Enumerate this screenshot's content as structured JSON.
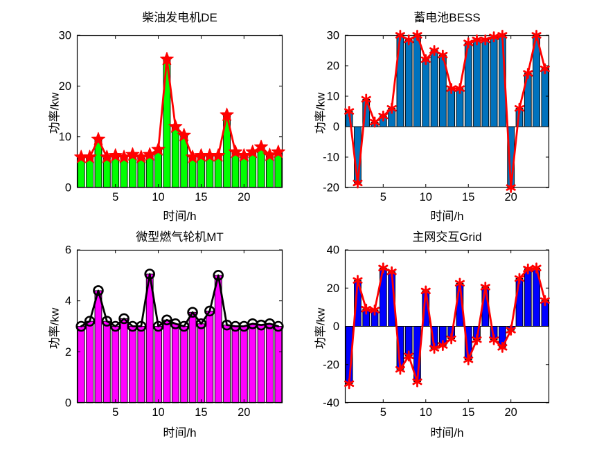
{
  "figure": {
    "background": "#ffffff",
    "layout": "2x2 grid of MATLAB-style bar+line charts",
    "frame_color": "#000000",
    "text_color": "#000000"
  },
  "chart_data": [
    {
      "type": "bar",
      "title": "柴油发电机DE",
      "xlabel": "时间/h",
      "ylabel": "功率/kw",
      "hours": [
        1,
        2,
        3,
        4,
        5,
        6,
        7,
        8,
        9,
        10,
        11,
        12,
        13,
        14,
        15,
        16,
        17,
        18,
        19,
        20,
        21,
        22,
        23,
        24
      ],
      "values": [
        6,
        6,
        9.5,
        6,
        6.3,
        6,
        6.5,
        6,
        6.5,
        7.5,
        25.3,
        12,
        10.3,
        6,
        6.3,
        6.3,
        6.3,
        14.3,
        7,
        6.3,
        7,
        8,
        6.4,
        7
      ],
      "xlim": [
        0.5,
        24.5
      ],
      "ylim": [
        0,
        30
      ],
      "yticks": [
        0,
        10,
        20,
        30
      ],
      "xticks": [
        5,
        10,
        15,
        20
      ],
      "grid": false,
      "legend": null,
      "bar_color": "#00ff00",
      "bar_edge_color": "#000000",
      "line_color": "#ff0000",
      "marker": "pentagram",
      "marker_color": "#ff0000"
    },
    {
      "type": "bar",
      "title": "蓄电池BESS",
      "xlabel": "时间/h",
      "ylabel": "功率/kw",
      "hours": [
        1,
        2,
        3,
        4,
        5,
        6,
        7,
        8,
        9,
        10,
        11,
        12,
        13,
        14,
        15,
        16,
        17,
        18,
        19,
        20,
        21,
        22,
        23,
        24
      ],
      "values": [
        5,
        -18.5,
        9,
        1.5,
        3.5,
        6,
        30,
        28.5,
        30,
        22,
        25,
        23.5,
        12.5,
        12.5,
        27.5,
        28.5,
        28.5,
        29.5,
        30,
        -20,
        6,
        17.5,
        30,
        19
      ],
      "xlim": [
        0.5,
        24.5
      ],
      "ylim": [
        -20,
        30
      ],
      "yticks": [
        -20,
        -10,
        0,
        10,
        20,
        30
      ],
      "xticks": [
        5,
        10,
        15,
        20
      ],
      "grid": false,
      "legend": null,
      "bar_color": "#0072bd",
      "bar_edge_color": "#000000",
      "line_color": "#ff0000",
      "marker": "asterisk",
      "marker_color": "#ff0000"
    },
    {
      "type": "bar",
      "title": "微型燃气轮机MT",
      "xlabel": "时间/h",
      "ylabel": "功率/kw",
      "hours": [
        1,
        2,
        3,
        4,
        5,
        6,
        7,
        8,
        9,
        10,
        11,
        12,
        13,
        14,
        15,
        16,
        17,
        18,
        19,
        20,
        21,
        22,
        23,
        24
      ],
      "values": [
        3,
        3.2,
        4.4,
        3.2,
        3,
        3.3,
        3,
        3,
        5.05,
        3,
        3.25,
        3.1,
        3,
        3.55,
        3.1,
        3.6,
        5,
        3.05,
        3,
        3,
        3.1,
        3.05,
        3.1,
        3
      ],
      "xlim": [
        0.5,
        24.5
      ],
      "ylim": [
        0,
        6
      ],
      "yticks": [
        0,
        2,
        4,
        6
      ],
      "xticks": [
        5,
        10,
        15,
        20
      ],
      "grid": false,
      "legend": null,
      "bar_color": "#ff00ff",
      "bar_edge_color": "#000000",
      "line_color": "#000000",
      "marker": "circle-open",
      "marker_color": "#000000"
    },
    {
      "type": "bar",
      "title": "主网交互Grid",
      "xlabel": "时间/h",
      "ylabel": "功率/kw",
      "hours": [
        1,
        2,
        3,
        4,
        5,
        6,
        7,
        8,
        9,
        10,
        11,
        12,
        13,
        14,
        15,
        16,
        17,
        18,
        19,
        20,
        21,
        22,
        23,
        24
      ],
      "values": [
        -30,
        24,
        9,
        8.5,
        30.5,
        28.5,
        -22.5,
        -15.5,
        -29,
        18.5,
        -11.5,
        -10,
        -6.5,
        22.5,
        -17.5,
        -7,
        20.5,
        -7,
        -11,
        -2,
        25,
        30,
        30.5,
        13.5
      ],
      "xlim": [
        0.5,
        24.5
      ],
      "ylim": [
        -40,
        40
      ],
      "yticks": [
        -40,
        -20,
        0,
        20,
        40
      ],
      "xticks": [
        5,
        10,
        15,
        20
      ],
      "grid": false,
      "legend": null,
      "bar_color": "#0000ff",
      "bar_edge_color": "#000000",
      "line_color": "#ff0000",
      "marker": "asterisk",
      "marker_color": "#ff0000"
    }
  ]
}
